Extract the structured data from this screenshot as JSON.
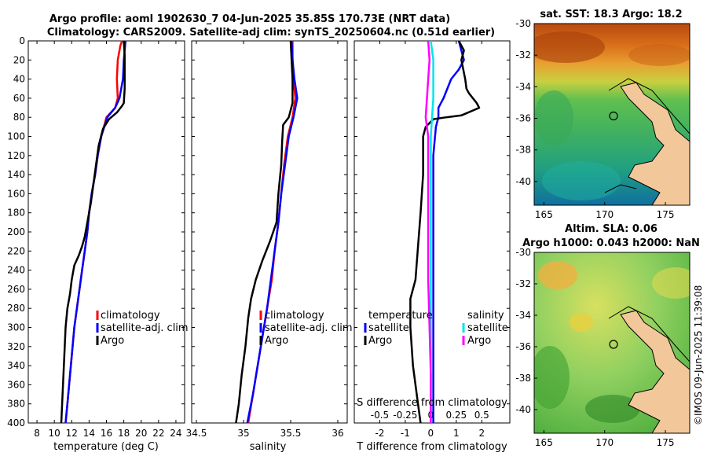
{
  "title": {
    "line1": "Argo profile: aoml 1902630_7 04-Jun-2025 35.85S 170.73E (NRT data)",
    "line2": "Climatology: CARS2009. Satellite-adj clim: synTS_20250604.nc (0.51d earlier)"
  },
  "watermark": "©IMOS 09-Jun-2025 11:39:08",
  "colors": {
    "climatology": "#ff0000",
    "satellite": "#0000ff",
    "argo": "#000000",
    "sat_sal": "#00e5ee",
    "argo_sal": "#ff00ff",
    "land": "#f2c79a"
  },
  "chart_data": [
    {
      "type": "line",
      "xlabel": "temperature (deg C)",
      "ylabel": "",
      "xlim": [
        7,
        25
      ],
      "ylim": [
        400,
        0
      ],
      "xticks": [
        8,
        10,
        12,
        14,
        16,
        18,
        20,
        22,
        24
      ],
      "yticks": [
        0,
        20,
        40,
        60,
        80,
        100,
        120,
        140,
        160,
        180,
        200,
        220,
        240,
        260,
        280,
        300,
        320,
        340,
        360,
        380,
        400
      ],
      "legend": [
        "climatology",
        "satellite-adj. clim",
        "Argo"
      ],
      "series": [
        {
          "name": "climatology",
          "color": "#ff0000",
          "points": [
            [
              17.8,
              0
            ],
            [
              17.6,
              5
            ],
            [
              17.3,
              20
            ],
            [
              17.2,
              40
            ],
            [
              17.3,
              60
            ],
            [
              17.0,
              70
            ],
            [
              16.0,
              80
            ],
            [
              15.4,
              100
            ],
            [
              15.0,
              120
            ],
            [
              14.7,
              140
            ],
            [
              14.3,
              160
            ],
            [
              14.0,
              180
            ],
            [
              13.8,
              200
            ],
            [
              13.5,
              220
            ],
            [
              13.2,
              240
            ],
            [
              12.9,
              260
            ],
            [
              12.6,
              280
            ],
            [
              12.3,
              300
            ],
            [
              12.1,
              320
            ],
            [
              11.9,
              340
            ],
            [
              11.7,
              360
            ],
            [
              11.5,
              380
            ],
            [
              11.3,
              400
            ]
          ]
        },
        {
          "name": "satellite-adj. clim",
          "color": "#0000ff",
          "points": [
            [
              18.2,
              0
            ],
            [
              18.1,
              10
            ],
            [
              18.0,
              20
            ],
            [
              17.9,
              40
            ],
            [
              17.5,
              60
            ],
            [
              17.0,
              70
            ],
            [
              16.1,
              80
            ],
            [
              15.4,
              100
            ],
            [
              15.0,
              120
            ],
            [
              14.7,
              140
            ],
            [
              14.3,
              160
            ],
            [
              14.0,
              180
            ],
            [
              13.8,
              200
            ],
            [
              13.5,
              220
            ],
            [
              13.2,
              240
            ],
            [
              12.9,
              260
            ],
            [
              12.6,
              280
            ],
            [
              12.3,
              300
            ],
            [
              12.1,
              320
            ],
            [
              11.9,
              340
            ],
            [
              11.7,
              360
            ],
            [
              11.5,
              380
            ],
            [
              11.3,
              400
            ]
          ]
        },
        {
          "name": "Argo",
          "color": "#000000",
          "points": [
            [
              18.0,
              0
            ],
            [
              18.1,
              15
            ],
            [
              18.1,
              30
            ],
            [
              18.1,
              50
            ],
            [
              18.0,
              65
            ],
            [
              17.8,
              68
            ],
            [
              17.2,
              75
            ],
            [
              16.3,
              82
            ],
            [
              15.6,
              92
            ],
            [
              15.1,
              110
            ],
            [
              14.8,
              130
            ],
            [
              14.5,
              150
            ],
            [
              14.2,
              170
            ],
            [
              13.8,
              190
            ],
            [
              13.5,
              205
            ],
            [
              13.2,
              215
            ],
            [
              12.8,
              225
            ],
            [
              12.3,
              235
            ],
            [
              12.0,
              250
            ],
            [
              11.8,
              265
            ],
            [
              11.5,
              280
            ],
            [
              11.3,
              300
            ],
            [
              11.2,
              320
            ],
            [
              11.1,
              340
            ],
            [
              11.0,
              360
            ],
            [
              10.9,
              380
            ],
            [
              10.8,
              400
            ]
          ]
        }
      ]
    },
    {
      "type": "line",
      "xlabel": "salinity",
      "xlim": [
        34.45,
        36.1
      ],
      "ylim": [
        400,
        0
      ],
      "xticks": [
        34.5,
        35,
        35.5,
        36
      ],
      "xtick_labels": [
        "34.5",
        "35",
        "35.5",
        "36"
      ],
      "legend": [
        "climatology",
        "satellite-adj. clim",
        "Argo"
      ],
      "series": [
        {
          "name": "climatology",
          "color": "#ff0000",
          "points": [
            [
              35.52,
              0
            ],
            [
              35.52,
              20
            ],
            [
              35.53,
              40
            ],
            [
              35.55,
              60
            ],
            [
              35.52,
              80
            ],
            [
              35.47,
              100
            ],
            [
              35.43,
              130
            ],
            [
              35.4,
              160
            ],
            [
              35.37,
              190
            ],
            [
              35.33,
              220
            ],
            [
              35.3,
              250
            ],
            [
              35.25,
              280
            ],
            [
              35.2,
              310
            ],
            [
              35.15,
              340
            ],
            [
              35.1,
              370
            ],
            [
              35.05,
              400
            ]
          ]
        },
        {
          "name": "satellite-adj. clim",
          "color": "#0000ff",
          "points": [
            [
              35.51,
              0
            ],
            [
              35.52,
              20
            ],
            [
              35.54,
              40
            ],
            [
              35.57,
              60
            ],
            [
              35.53,
              80
            ],
            [
              35.48,
              100
            ],
            [
              35.44,
              130
            ],
            [
              35.4,
              160
            ],
            [
              35.37,
              190
            ],
            [
              35.33,
              220
            ],
            [
              35.29,
              250
            ],
            [
              35.25,
              280
            ],
            [
              35.2,
              310
            ],
            [
              35.15,
              340
            ],
            [
              35.1,
              370
            ],
            [
              35.04,
              400
            ]
          ]
        },
        {
          "name": "Argo",
          "color": "#000000",
          "points": [
            [
              35.5,
              0
            ],
            [
              35.51,
              20
            ],
            [
              35.52,
              40
            ],
            [
              35.52,
              65
            ],
            [
              35.48,
              80
            ],
            [
              35.42,
              88
            ],
            [
              35.41,
              105
            ],
            [
              35.4,
              130
            ],
            [
              35.37,
              160
            ],
            [
              35.35,
              190
            ],
            [
              35.28,
              210
            ],
            [
              35.2,
              230
            ],
            [
              35.13,
              250
            ],
            [
              35.08,
              270
            ],
            [
              35.05,
              290
            ],
            [
              35.02,
              320
            ],
            [
              34.98,
              350
            ],
            [
              34.95,
              380
            ],
            [
              34.92,
              400
            ]
          ]
        }
      ]
    },
    {
      "type": "line",
      "xlabel": "T difference from climatology",
      "top_label": "S difference from climatology",
      "xlim": [
        -3,
        3.1
      ],
      "ylim": [
        400,
        0
      ],
      "xticks": [
        -2,
        -1,
        0,
        1,
        2
      ],
      "top_xticks": [
        -0.5,
        -0.25,
        0,
        0.25,
        0.5
      ],
      "top_xtick_labels": [
        "-0.5",
        "-0.25",
        "0",
        "0.25",
        "0.5"
      ],
      "s_scale_note": "S difference plotted as S*4 on T axis",
      "legend_titles": [
        "temperature",
        "salinity"
      ],
      "legend": [
        "satellite",
        "Argo",
        "satellite",
        "Argo"
      ],
      "series": [
        {
          "name": "T satellite",
          "color": "#0000ff",
          "points": [
            [
              1.1,
              0
            ],
            [
              1.2,
              10
            ],
            [
              1.3,
              20
            ],
            [
              1.1,
              30
            ],
            [
              0.8,
              40
            ],
            [
              0.5,
              60
            ],
            [
              0.3,
              70
            ],
            [
              0.3,
              80
            ],
            [
              0.2,
              90
            ],
            [
              0.1,
              120
            ],
            [
              0.1,
              200
            ],
            [
              0.1,
              300
            ],
            [
              0.1,
              400
            ]
          ]
        },
        {
          "name": "T Argo",
          "color": "#000000",
          "points": [
            [
              1.1,
              0
            ],
            [
              1.3,
              10
            ],
            [
              1.2,
              20
            ],
            [
              1.35,
              40
            ],
            [
              1.4,
              50
            ],
            [
              1.5,
              55
            ],
            [
              1.8,
              65
            ],
            [
              1.9,
              70
            ],
            [
              1.2,
              78
            ],
            [
              0.6,
              80
            ],
            [
              0.1,
              82
            ],
            [
              -0.2,
              90
            ],
            [
              -0.3,
              100
            ],
            [
              -0.3,
              140
            ],
            [
              -0.4,
              180
            ],
            [
              -0.6,
              250
            ],
            [
              -0.8,
              270
            ],
            [
              -0.8,
              300
            ],
            [
              -0.7,
              340
            ],
            [
              -0.5,
              380
            ],
            [
              -0.4,
              400
            ]
          ]
        },
        {
          "name": "S satellite",
          "color": "#00e5ee",
          "points": [
            [
              0.0,
              0
            ],
            [
              0.1,
              20
            ],
            [
              0.1,
              40
            ],
            [
              0.1,
              60
            ],
            [
              0.05,
              80
            ],
            [
              0.0,
              100
            ],
            [
              0.0,
              200
            ],
            [
              0.0,
              300
            ],
            [
              0.0,
              400
            ]
          ]
        },
        {
          "name": "S Argo",
          "color": "#ff00ff",
          "points": [
            [
              -0.1,
              0
            ],
            [
              -0.05,
              20
            ],
            [
              -0.1,
              40
            ],
            [
              -0.15,
              60
            ],
            [
              -0.2,
              80
            ],
            [
              -0.1,
              100
            ],
            [
              -0.1,
              150
            ],
            [
              -0.1,
              200
            ],
            [
              -0.1,
              250
            ],
            [
              -0.05,
              300
            ],
            [
              0.0,
              350
            ],
            [
              0.0,
              400
            ]
          ]
        }
      ]
    },
    {
      "type": "heatmap",
      "title": "sat. SST: 18.3 Argo: 18.2",
      "xlim": [
        164.2,
        177
      ],
      "ylim": [
        -41.5,
        -30
      ],
      "xticks": [
        165,
        170,
        175
      ],
      "yticks": [
        -30,
        -32,
        -34,
        -36,
        -38,
        -40
      ],
      "marker": [
        170.73,
        -35.85
      ]
    },
    {
      "type": "heatmap",
      "title_line1": "Altim. SLA: 0.06",
      "title_line2": "Argo h1000: 0.043 h2000: NaN",
      "xlim": [
        164.2,
        177
      ],
      "ylim": [
        -41.5,
        -30
      ],
      "xticks": [
        165,
        170,
        175
      ],
      "yticks": [
        -30,
        -32,
        -34,
        -36,
        -38,
        -40
      ],
      "marker": [
        170.73,
        -35.85
      ]
    }
  ]
}
